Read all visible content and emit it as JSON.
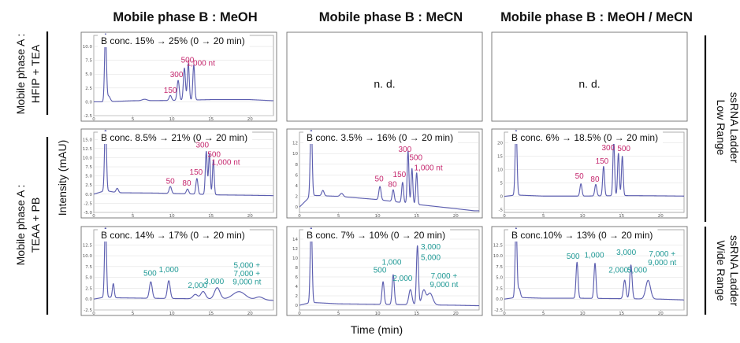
{
  "chart_data": {
    "type": "line",
    "column_titles": [
      "Mobile phase B : MeOH",
      "Mobile phase B : MeCN",
      "Mobile phase B : MeOH / MeCN"
    ],
    "row_titles_left": [
      {
        "line1": "Mobile phase A :",
        "line2": "HFIP + TEA"
      },
      {
        "line1": "Mobile phase A :",
        "line2": "TEAA + PB"
      }
    ],
    "row_titles_right": [
      {
        "line1": "Low Range",
        "line2": "ssRNA Ladder"
      },
      {
        "line1": "Wide Range",
        "line2": "ssRNA Ladder"
      }
    ],
    "ylabel": "Intensity (mAU)",
    "xlabel": "Time (min)",
    "xlim": [
      0,
      23
    ],
    "panels": [
      {
        "id": "r1c1",
        "row": 0,
        "col": 0,
        "condition": "B conc. 15% → 25% (0 → 20 min)",
        "ylim": [
          -2.5,
          12
        ],
        "yticks": [
          -2.5,
          0.0,
          2.5,
          5.0,
          7.5,
          10.0
        ],
        "xticks": [
          0,
          5,
          10,
          15,
          20
        ],
        "baseline": [
          [
            0,
            0.0
          ],
          [
            1.45,
            0.0
          ],
          [
            5,
            0.2
          ],
          [
            10,
            0.25
          ],
          [
            15,
            0.4
          ],
          [
            20,
            0.4
          ],
          [
            23,
            0.2
          ]
        ],
        "peaks": [
          [
            1.5,
            12.5,
            0.12
          ],
          [
            1.9,
            1.0,
            0.2
          ],
          [
            6.5,
            0.25,
            0.3
          ],
          [
            9.8,
            0.9,
            0.15
          ],
          [
            10.8,
            3.6,
            0.14
          ],
          [
            11.6,
            5.8,
            0.13
          ],
          [
            12.1,
            6.6,
            0.12
          ],
          [
            12.8,
            6.3,
            0.12
          ]
        ],
        "labels": [
          {
            "text": "150",
            "t": 9.8,
            "level": 1.6,
            "color": "#c5286e"
          },
          {
            "text": "300",
            "t": 10.6,
            "level": 4.5,
            "color": "#c5286e"
          },
          {
            "text": "500",
            "t": 12.0,
            "level": 7.1,
            "color": "#c5286e"
          },
          {
            "text": "1,000 nt",
            "t": 13.7,
            "level": 6.5,
            "color": "#c5286e"
          }
        ]
      },
      {
        "id": "r1c2",
        "row": 0,
        "col": 1,
        "condition": "",
        "nd": "n. d."
      },
      {
        "id": "r1c3",
        "row": 0,
        "col": 2,
        "condition": "",
        "nd": "n. d."
      },
      {
        "id": "r2c1",
        "row": 1,
        "col": 0,
        "condition": "B conc. 8.5% → 21% (0 → 20 min)",
        "ylim": [
          -5,
          17
        ],
        "yticks": [
          -5.0,
          -2.5,
          0.0,
          2.5,
          5.0,
          7.5,
          10.0,
          12.5,
          15.0
        ],
        "xticks": [
          0,
          5,
          10,
          15,
          20
        ],
        "baseline": [
          [
            0,
            0.0
          ],
          [
            1.5,
            1.0
          ],
          [
            3,
            0.4
          ],
          [
            8,
            0.3
          ],
          [
            12,
            0.1
          ],
          [
            16,
            -0.2
          ],
          [
            20,
            -0.3
          ],
          [
            23,
            -0.4
          ]
        ],
        "peaks": [
          [
            1.5,
            20.0,
            0.12
          ],
          [
            3.0,
            1.2,
            0.15
          ],
          [
            9.8,
            1.9,
            0.15
          ],
          [
            12.0,
            1.3,
            0.15
          ],
          [
            13.2,
            4.3,
            0.13
          ],
          [
            14.4,
            11.8,
            0.12
          ],
          [
            14.8,
            11.2,
            0.11
          ],
          [
            15.3,
            9.3,
            0.11
          ]
        ],
        "labels": [
          {
            "text": "50",
            "t": 9.8,
            "level": 2.9,
            "color": "#c5286e"
          },
          {
            "text": "80",
            "t": 11.9,
            "level": 2.3,
            "color": "#c5286e"
          },
          {
            "text": "150",
            "t": 13.1,
            "level": 5.3,
            "color": "#c5286e"
          },
          {
            "text": "300",
            "t": 13.9,
            "level": 12.8,
            "color": "#c5286e"
          },
          {
            "text": "500",
            "t": 15.4,
            "level": 10.2,
            "color": "#c5286e"
          },
          {
            "text": "1,000 nt",
            "t": 16.9,
            "level": 8.0,
            "color": "#c5286e"
          }
        ]
      },
      {
        "id": "r2c2",
        "row": 1,
        "col": 1,
        "condition": "B conc. 3.5% → 16% (0 → 20 min)",
        "ylim": [
          -1,
          14
        ],
        "yticks": [
          0,
          2,
          4,
          6,
          8,
          10,
          12
        ],
        "xticks": [
          0,
          5,
          10,
          15,
          20
        ],
        "baseline": [
          [
            0,
            0.0
          ],
          [
            1.5,
            2.2
          ],
          [
            5,
            2.0
          ],
          [
            10,
            1.4
          ],
          [
            15,
            0.5
          ],
          [
            20,
            -0.3
          ],
          [
            23,
            -0.8
          ]
        ],
        "peaks": [
          [
            1.5,
            15.0,
            0.12
          ],
          [
            3.0,
            1.0,
            0.15
          ],
          [
            5.4,
            0.6,
            0.2
          ],
          [
            10.3,
            2.5,
            0.14
          ],
          [
            12.0,
            2.2,
            0.13
          ],
          [
            13.2,
            3.8,
            0.12
          ],
          [
            13.9,
            9.8,
            0.11
          ],
          [
            14.4,
            6.6,
            0.11
          ],
          [
            15.0,
            5.9,
            0.11
          ]
        ],
        "labels": [
          {
            "text": "50",
            "t": 10.2,
            "level": 4.8,
            "color": "#c5286e"
          },
          {
            "text": "80",
            "t": 11.9,
            "level": 3.8,
            "color": "#c5286e"
          },
          {
            "text": "150",
            "t": 12.8,
            "level": 5.6,
            "color": "#c5286e"
          },
          {
            "text": "300",
            "t": 13.5,
            "level": 10.3,
            "color": "#c5286e"
          },
          {
            "text": "500",
            "t": 14.9,
            "level": 8.8,
            "color": "#c5286e"
          },
          {
            "text": "1,000 nt",
            "t": 16.5,
            "level": 6.9,
            "color": "#c5286e"
          }
        ]
      },
      {
        "id": "r2c3",
        "row": 1,
        "col": 2,
        "condition": "B conc. 6% → 18.5% (0 → 20 min)",
        "ylim": [
          -6,
          24
        ],
        "yticks": [
          -5,
          0,
          5,
          10,
          15,
          20
        ],
        "xticks": [
          0,
          5,
          10,
          15,
          20
        ],
        "baseline": [
          [
            0,
            0.0
          ],
          [
            1.5,
            0.5
          ],
          [
            5,
            0.1
          ],
          [
            10,
            0.1
          ],
          [
            15,
            0.3
          ],
          [
            20,
            0.2
          ],
          [
            23,
            0.1
          ]
        ],
        "peaks": [
          [
            1.5,
            26.0,
            0.12
          ],
          [
            9.8,
            4.6,
            0.13
          ],
          [
            11.7,
            4.3,
            0.13
          ],
          [
            12.7,
            11.0,
            0.12
          ],
          [
            14.0,
            20.5,
            0.11
          ],
          [
            14.6,
            15.8,
            0.11
          ],
          [
            15.1,
            14.7,
            0.11
          ]
        ],
        "labels": [
          {
            "text": "50",
            "t": 9.6,
            "level": 6.6,
            "color": "#c5286e"
          },
          {
            "text": "80",
            "t": 11.6,
            "level": 5.5,
            "color": "#c5286e"
          },
          {
            "text": "150",
            "t": 12.5,
            "level": 12.2,
            "color": "#c5286e"
          },
          {
            "text": "300",
            "t": 13.3,
            "level": 17.2,
            "color": "#c5286e"
          },
          {
            "text": "500",
            "t": 15.3,
            "level": 17.0,
            "color": "#c5286e"
          }
        ]
      },
      {
        "id": "r3c1",
        "row": 2,
        "col": 0,
        "condition": "B conc. 14% → 17% (0 → 20 min)",
        "ylim": [
          -2.5,
          16
        ],
        "yticks": [
          -2.5,
          0.0,
          2.5,
          5.0,
          7.5,
          10.0,
          12.5
        ],
        "xticks": [
          0,
          5,
          10,
          15,
          20
        ],
        "baseline": [
          [
            0,
            0.0
          ],
          [
            1.5,
            0.5
          ],
          [
            3,
            0.3
          ],
          [
            7,
            0.2
          ],
          [
            12,
            0.1
          ],
          [
            17,
            0.0
          ],
          [
            23,
            -0.3
          ]
        ],
        "peaks": [
          [
            1.5,
            18.0,
            0.12
          ],
          [
            2.5,
            3.2,
            0.12
          ],
          [
            7.3,
            3.8,
            0.18
          ],
          [
            9.6,
            4.1,
            0.18
          ],
          [
            13.0,
            1.0,
            0.3
          ],
          [
            14.0,
            1.7,
            0.3
          ],
          [
            15.8,
            2.6,
            0.35
          ],
          [
            18.6,
            1.8,
            0.8
          ],
          [
            21.2,
            0.7,
            0.5
          ]
        ],
        "labels": [
          {
            "text": "500",
            "t": 7.2,
            "level": 5.4,
            "color": "#219a96"
          },
          {
            "text": "1,000",
            "t": 9.6,
            "level": 6.2,
            "color": "#219a96"
          },
          {
            "text": "2,000",
            "t": 13.3,
            "level": 2.6,
            "color": "#219a96"
          },
          {
            "text": "3,000",
            "t": 15.4,
            "level": 3.5,
            "color": "#219a96"
          },
          {
            "text": "5,000 +",
            "t": 19.6,
            "level": 7.2,
            "color": "#219a96"
          },
          {
            "text": "7,000 +",
            "t": 19.6,
            "level": 5.3,
            "color": "#219a96"
          },
          {
            "text": "9,000 nt",
            "t": 19.6,
            "level": 3.4,
            "color": "#219a96"
          }
        ]
      },
      {
        "id": "r3c2",
        "row": 2,
        "col": 1,
        "condition": "B conc. 7% → 10% (0 → 20 min)",
        "ylim": [
          -1,
          16
        ],
        "yticks": [
          0,
          2,
          4,
          6,
          8,
          10,
          12,
          14
        ],
        "xticks": [
          0,
          5,
          10,
          15,
          20
        ],
        "baseline": [
          [
            0,
            0.0
          ],
          [
            1.5,
            0.6
          ],
          [
            5,
            0.3
          ],
          [
            10,
            0.2
          ],
          [
            15,
            0.1
          ],
          [
            20,
            0.0
          ],
          [
            23,
            -0.1
          ]
        ],
        "peaks": [
          [
            1.5,
            18.0,
            0.12
          ],
          [
            10.7,
            4.8,
            0.14
          ],
          [
            12.0,
            6.3,
            0.14
          ],
          [
            14.2,
            3.2,
            0.2
          ],
          [
            15.1,
            12.5,
            0.13
          ],
          [
            15.9,
            3.0,
            0.25
          ],
          [
            16.7,
            2.5,
            0.35
          ]
        ],
        "labels": [
          {
            "text": "500",
            "t": 10.3,
            "level": 6.9,
            "color": "#219a96"
          },
          {
            "text": "1,000",
            "t": 11.8,
            "level": 8.6,
            "color": "#219a96"
          },
          {
            "text": "2,000",
            "t": 13.2,
            "level": 5.2,
            "color": "#219a96"
          },
          {
            "text": "3,000",
            "t": 16.8,
            "level": 11.8,
            "color": "#219a96"
          },
          {
            "text": "5,000",
            "t": 16.8,
            "level": 9.6,
            "color": "#219a96"
          },
          {
            "text": "7,000 +",
            "t": 18.5,
            "level": 5.7,
            "color": "#219a96"
          },
          {
            "text": "9,000 nt",
            "t": 18.5,
            "level": 3.8,
            "color": "#219a96"
          }
        ]
      },
      {
        "id": "r3c3",
        "row": 2,
        "col": 2,
        "condition": "B conc.10% → 13% (0 → 20 min)",
        "ylim": [
          -2.5,
          16
        ],
        "yticks": [
          -2.5,
          0.0,
          2.5,
          5.0,
          7.5,
          10.0,
          12.5
        ],
        "xticks": [
          0,
          5,
          10,
          15,
          20
        ],
        "baseline": [
          [
            0,
            0.0
          ],
          [
            1.5,
            0.4
          ],
          [
            5,
            0.2
          ],
          [
            10,
            0.2
          ],
          [
            15,
            0.1
          ],
          [
            20,
            0.0
          ],
          [
            23,
            -0.2
          ]
        ],
        "peaks": [
          [
            1.5,
            17.0,
            0.12
          ],
          [
            1.9,
            2.0,
            0.15
          ],
          [
            9.3,
            8.3,
            0.13
          ],
          [
            11.6,
            8.1,
            0.13
          ],
          [
            15.4,
            4.3,
            0.16
          ],
          [
            16.2,
            7.8,
            0.15
          ],
          [
            18.4,
            4.3,
            0.3
          ]
        ],
        "labels": [
          {
            "text": "500",
            "t": 8.8,
            "level": 9.3,
            "color": "#219a96"
          },
          {
            "text": "1,000",
            "t": 11.5,
            "level": 9.6,
            "color": "#219a96"
          },
          {
            "text": "2,000",
            "t": 14.6,
            "level": 6.1,
            "color": "#219a96"
          },
          {
            "text": "3,000",
            "t": 15.6,
            "level": 10.2,
            "color": "#219a96"
          },
          {
            "text": "5,000",
            "t": 17.0,
            "level": 6.1,
            "color": "#219a96"
          },
          {
            "text": "7,000 +",
            "t": 20.2,
            "level": 9.8,
            "color": "#219a96"
          },
          {
            "text": "9,000 nt",
            "t": 20.2,
            "level": 7.8,
            "color": "#219a96"
          }
        ]
      }
    ]
  },
  "colors": {
    "trace": "#5d5fb0",
    "low_range_label": "#c5286e",
    "wide_range_label": "#219a96"
  }
}
